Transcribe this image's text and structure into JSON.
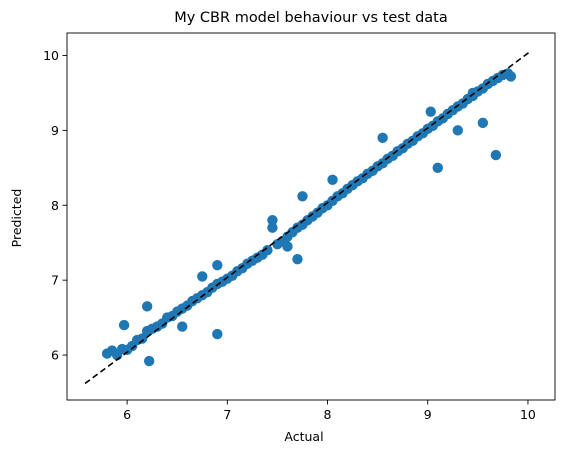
{
  "chart_data": {
    "type": "scatter",
    "title": "My CBR model behaviour vs test data",
    "xlabel": "Actual",
    "ylabel": "Predicted",
    "xlim": [
      5.4,
      10.27
    ],
    "ylim": [
      5.4,
      10.3
    ],
    "x_ticks": [
      6,
      7,
      8,
      9,
      10
    ],
    "y_ticks": [
      6,
      7,
      8,
      9,
      10
    ],
    "x_tick_labels": [
      "6",
      "7",
      "8",
      "9",
      "10"
    ],
    "y_tick_labels": [
      "6",
      "7",
      "8",
      "9",
      "10"
    ],
    "grid": false,
    "point_color": "#1f77b4",
    "reference_line": {
      "style": "dashed",
      "color": "#000000",
      "x": [
        5.58,
        10.02
      ],
      "y": [
        5.62,
        10.05
      ]
    },
    "series": [
      {
        "x": [
          5.8,
          5.85,
          5.9,
          5.95,
          6.0,
          6.05,
          6.1,
          6.15,
          6.2,
          6.25,
          6.3,
          6.35,
          6.4,
          6.45,
          6.5,
          6.55,
          6.6,
          6.65,
          6.7,
          6.75,
          6.8,
          6.85,
          6.9,
          6.95,
          7.0,
          7.05,
          7.1,
          7.15,
          7.2,
          7.25,
          7.3,
          7.35,
          7.4,
          7.5,
          7.55,
          7.6,
          7.65,
          7.7,
          7.75,
          7.8,
          7.85,
          7.9,
          7.95,
          8.0,
          8.05,
          8.1,
          8.15,
          8.2,
          8.25,
          8.3,
          8.35,
          8.4,
          8.45,
          8.5,
          8.55,
          8.6,
          8.65,
          8.7,
          8.75,
          8.8,
          8.85,
          8.9,
          8.95,
          9.0,
          9.05,
          9.1,
          9.15,
          9.2,
          9.25,
          9.3,
          9.35,
          9.4,
          9.45,
          9.5,
          9.55,
          9.6,
          9.65,
          9.7,
          9.75,
          9.8,
          9.83,
          5.97,
          6.22,
          6.55,
          6.9,
          7.45,
          7.7,
          7.75,
          8.05,
          8.55,
          8.7,
          9.03,
          9.1,
          9.45,
          9.68,
          6.9,
          6.2,
          6.75,
          7.45,
          7.6,
          9.3,
          9.55
        ],
        "y": [
          6.02,
          6.06,
          6.0,
          6.08,
          6.07,
          6.12,
          6.2,
          6.22,
          6.32,
          6.35,
          6.38,
          6.42,
          6.5,
          6.52,
          6.58,
          6.62,
          6.66,
          6.72,
          6.76,
          6.8,
          6.84,
          6.9,
          6.95,
          6.98,
          7.02,
          7.06,
          7.12,
          7.16,
          7.22,
          7.26,
          7.3,
          7.34,
          7.4,
          7.48,
          7.52,
          7.58,
          7.64,
          7.7,
          7.74,
          7.8,
          7.85,
          7.9,
          7.96,
          8.0,
          8.06,
          8.12,
          8.16,
          8.22,
          8.27,
          8.32,
          8.36,
          8.42,
          8.46,
          8.52,
          8.56,
          8.62,
          8.66,
          8.72,
          8.76,
          8.82,
          8.86,
          8.92,
          8.96,
          9.02,
          9.06,
          9.12,
          9.16,
          9.22,
          9.27,
          9.32,
          9.36,
          9.42,
          9.46,
          9.52,
          9.56,
          9.62,
          9.66,
          9.7,
          9.74,
          9.76,
          9.72,
          6.4,
          5.92,
          6.38,
          6.28,
          7.8,
          7.28,
          8.12,
          8.34,
          8.9,
          8.72,
          9.25,
          8.5,
          9.5,
          8.67,
          7.2,
          6.65,
          7.05,
          7.7,
          7.45,
          9.0,
          9.1
        ]
      }
    ]
  }
}
